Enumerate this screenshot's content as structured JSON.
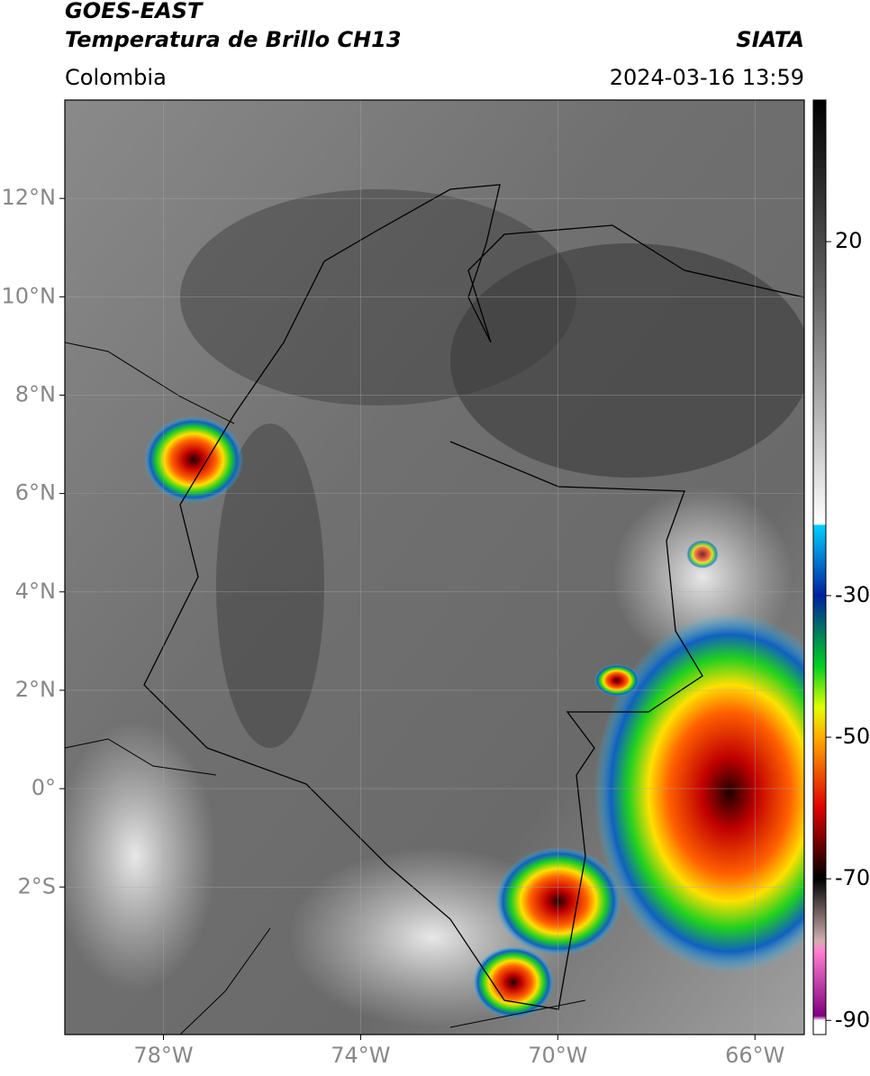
{
  "header": {
    "title": "GOES-EAST",
    "subtitle": "Temperatura de Brillo CH13",
    "region": "Colombia",
    "source": "SIATA",
    "timestamp": "2024-03-16 13:59"
  },
  "map": {
    "xlim": [
      -80,
      -65
    ],
    "ylim": [
      -5,
      14
    ],
    "xticks": [
      {
        "value": -78,
        "label": "78°W"
      },
      {
        "value": -74,
        "label": "74°W"
      },
      {
        "value": -70,
        "label": "70°W"
      },
      {
        "value": -66,
        "label": "66°W"
      }
    ],
    "yticks": [
      {
        "value": 12,
        "label": "12°N"
      },
      {
        "value": 10,
        "label": "10°N"
      },
      {
        "value": 8,
        "label": "8°N"
      },
      {
        "value": 6,
        "label": "6°N"
      },
      {
        "value": 4,
        "label": "4°N"
      },
      {
        "value": 2,
        "label": "2°N"
      },
      {
        "value": 0,
        "label": "0°"
      },
      {
        "value": -2,
        "label": "2°S"
      }
    ],
    "grid": true
  },
  "colorbar": {
    "lim": [
      -92,
      40
    ],
    "ticks": [
      20,
      -30,
      -50,
      -70,
      -90
    ]
  }
}
